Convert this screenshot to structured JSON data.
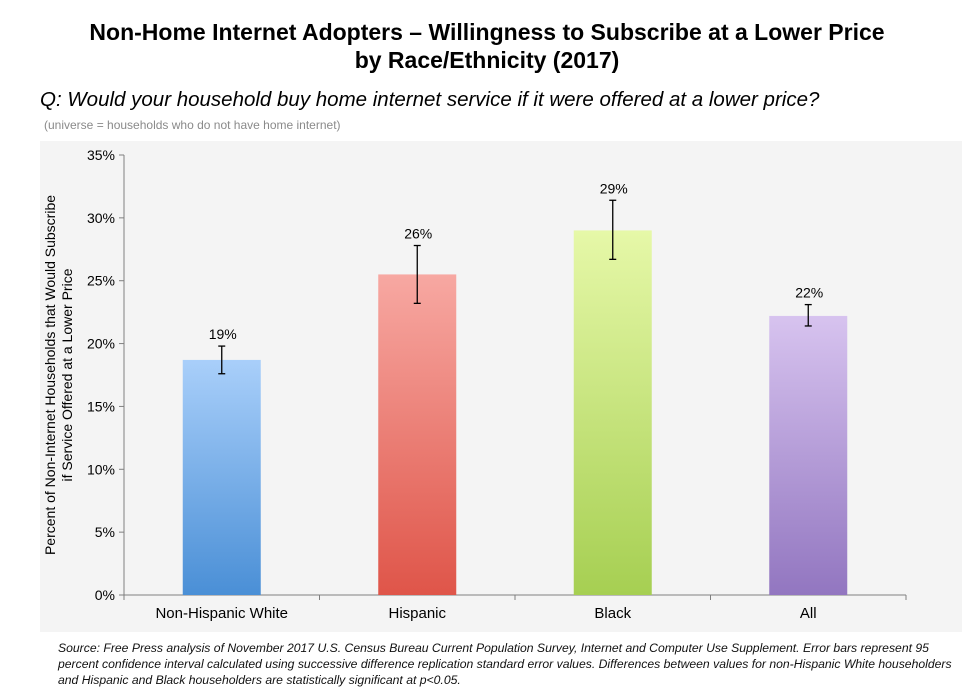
{
  "header": {
    "title_line1": "Non-Home Internet Adopters – Willingness to Subscribe at a Lower Price",
    "title_line2": "by Race/Ethnicity (2017)",
    "question": "Q: Would your household buy home internet service if it were offered at a lower price?",
    "universe": "(universe = households who do not have home internet)"
  },
  "footer": {
    "source": "Source: Free Press analysis of November 2017 U.S. Census Bureau Current Population Survey, Internet and Computer Use Supplement. Error bars represent 95 percent confidence interval calculated using successive difference replication standard error values. Differences between values for non-Hispanic White householders and Hispanic and Black householders are statistically significant at p<0.05."
  },
  "chart_data": {
    "type": "bar",
    "categories": [
      "Non-Hispanic White",
      "Hispanic",
      "Black",
      "All"
    ],
    "values": [
      18.7,
      25.5,
      29.0,
      22.2
    ],
    "data_labels": [
      "19%",
      "26%",
      "29%",
      "22%"
    ],
    "error_low": [
      17.6,
      23.2,
      26.7,
      21.4
    ],
    "error_high": [
      19.8,
      27.8,
      31.4,
      23.1
    ],
    "ylabel_line1": "Percent of Non-Internet Households that Would Subscribe",
    "ylabel_line2": "if Service Offered at a Lower Price",
    "ylim": [
      0,
      35
    ],
    "yticks": [
      0,
      5,
      10,
      15,
      20,
      25,
      30,
      35
    ],
    "ytick_labels": [
      "0%",
      "5%",
      "10%",
      "15%",
      "20%",
      "25%",
      "30%",
      "35%"
    ],
    "grid": false,
    "bar_colors": [
      {
        "top": "#a9cffa",
        "bottom": "#4a8fd6"
      },
      {
        "top": "#f7a8a2",
        "bottom": "#df5549"
      },
      {
        "top": "#e6f8a8",
        "bottom": "#a6cf52"
      },
      {
        "top": "#d7c3ef",
        "bottom": "#9276c0"
      }
    ]
  }
}
